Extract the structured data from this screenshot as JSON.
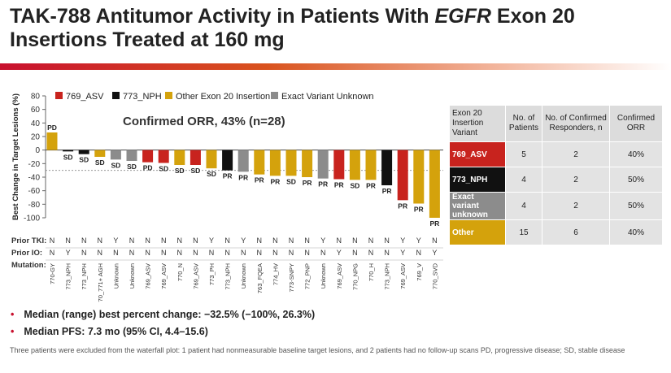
{
  "title": {
    "part1": "TAK-788 Antitumor Activity in Patients With ",
    "italic": "EGFR",
    "part2": " Exon 20 Insertions Treated at 160 mg"
  },
  "colors": {
    "asv": "#c8231e",
    "nph": "#111111",
    "other": "#d4a20c",
    "unknown": "#8c8c8c"
  },
  "chart_data": {
    "type": "bar",
    "ylabel": "Best Change in Target Lesions (%)",
    "ylim": [
      -100,
      80
    ],
    "yticks": [
      80,
      60,
      40,
      20,
      0,
      -20,
      -40,
      -60,
      -80,
      -100
    ],
    "reference_line": -30,
    "orr_text": "Confirmed ORR, 43% (n=28)",
    "legend": [
      {
        "label": "769_ASV",
        "color": "#c8231e"
      },
      {
        "label": "773_NPH",
        "color": "#111111"
      },
      {
        "label": "Other Exon 20 Insertion",
        "color": "#d4a20c"
      },
      {
        "label": "Exact Variant Unknown",
        "color": "#8c8c8c"
      }
    ],
    "row_labels": {
      "tki": "Prior TKI:",
      "io": "Prior IO:",
      "mutation": "Mutation:"
    },
    "bars": [
      {
        "mutation": "770-GY",
        "value": 26,
        "response": "PD",
        "group": "other",
        "tki": "N",
        "io": "N"
      },
      {
        "mutation": "773_NPH",
        "value": -2,
        "response": "SD",
        "group": "nph",
        "tki": "N",
        "io": "Y"
      },
      {
        "mutation": "773_NPH",
        "value": -6,
        "response": "SD",
        "group": "nph",
        "tki": "N",
        "io": "N"
      },
      {
        "mutation": "770_771+ AGH",
        "value": -10,
        "response": "SD",
        "group": "other",
        "tki": "N",
        "io": "N"
      },
      {
        "mutation": "Unknown",
        "value": -14,
        "response": "SD",
        "group": "unknown",
        "tki": "Y",
        "io": "N"
      },
      {
        "mutation": "Unknown",
        "value": -16,
        "response": "SD",
        "group": "unknown",
        "tki": "N",
        "io": "N"
      },
      {
        "mutation": "769_ASV",
        "value": -18,
        "response": "PD",
        "group": "asv",
        "tki": "N",
        "io": "N"
      },
      {
        "mutation": "769_ASV",
        "value": -19,
        "response": "SD",
        "group": "asv",
        "tki": "N",
        "io": "N"
      },
      {
        "mutation": "770_N",
        "value": -22,
        "response": "SD",
        "group": "other",
        "tki": "N",
        "io": "N"
      },
      {
        "mutation": "769_ASV",
        "value": -22,
        "response": "SD",
        "group": "asv",
        "tki": "N",
        "io": "N"
      },
      {
        "mutation": "773_PH",
        "value": -27,
        "response": "SD",
        "group": "other",
        "tki": "Y",
        "io": "N"
      },
      {
        "mutation": "773_NPH",
        "value": -30,
        "response": "PR",
        "group": "nph",
        "tki": "N",
        "io": "N"
      },
      {
        "mutation": "Unknown",
        "value": -32,
        "response": "PR",
        "group": "unknown",
        "tki": "Y",
        "io": "N"
      },
      {
        "mutation": "763_FQEA",
        "value": -36,
        "response": "PR",
        "group": "other",
        "tki": "N",
        "io": "N"
      },
      {
        "mutation": "774_HV",
        "value": -38,
        "response": "PR",
        "group": "other",
        "tki": "N",
        "io": "N"
      },
      {
        "mutation": "773-SNPY",
        "value": -38,
        "response": "SD",
        "group": "other",
        "tki": "N",
        "io": "N"
      },
      {
        "mutation": "772_PNP",
        "value": -40,
        "response": "PR",
        "group": "other",
        "tki": "N",
        "io": "N"
      },
      {
        "mutation": "Unknown",
        "value": -42,
        "response": "PR",
        "group": "unknown",
        "tki": "Y",
        "io": "N"
      },
      {
        "mutation": "769_ASV",
        "value": -43,
        "response": "PR",
        "group": "asv",
        "tki": "N",
        "io": "Y"
      },
      {
        "mutation": "770_NPG",
        "value": -44,
        "response": "SD",
        "group": "other",
        "tki": "N",
        "io": "N"
      },
      {
        "mutation": "770_H",
        "value": -44,
        "response": "PR",
        "group": "other",
        "tki": "N",
        "io": "N"
      },
      {
        "mutation": "773_NPH",
        "value": -52,
        "response": "PR",
        "group": "nph",
        "tki": "N",
        "io": "N"
      },
      {
        "mutation": "769_ASV",
        "value": -74,
        "response": "PR",
        "group": "asv",
        "tki": "Y",
        "io": "Y"
      },
      {
        "mutation": "769_V",
        "value": -79,
        "response": "PR",
        "group": "other",
        "tki": "Y",
        "io": "N"
      },
      {
        "mutation": "770_SVD",
        "value": -100,
        "response": "PR",
        "group": "other",
        "tki": "N",
        "io": "Y"
      }
    ]
  },
  "table": {
    "headers": [
      "Exon 20 Insertion Variant",
      "No. of Patients",
      "No. of Confirmed Responders, n",
      "Confirmed ORR"
    ],
    "rows": [
      {
        "variant": "769_ASV",
        "patients": "5",
        "responders": "2",
        "orr": "40%",
        "color": "#c8231e"
      },
      {
        "variant": "773_NPH",
        "patients": "4",
        "responders": "2",
        "orr": "50%",
        "color": "#111111"
      },
      {
        "variant": "Exact variant unknown",
        "patients": "4",
        "responders": "2",
        "orr": "50%",
        "color": "#8c8c8c"
      },
      {
        "variant": "Other",
        "patients": "15",
        "responders": "6",
        "orr": "40%",
        "color": "#d4a20c"
      }
    ]
  },
  "bullets": [
    "Median (range) best percent change: −32.5% (−100%, 26.3%)",
    "Median PFS: 7.3 mo (95% CI, 4.4–15.6)"
  ],
  "footnote": "Three patients were excluded from the waterfall plot: 1 patient had nonmeasurable baseline target lesions, and 2 patients had no follow-up scans PD, progressive disease; SD, stable disease"
}
